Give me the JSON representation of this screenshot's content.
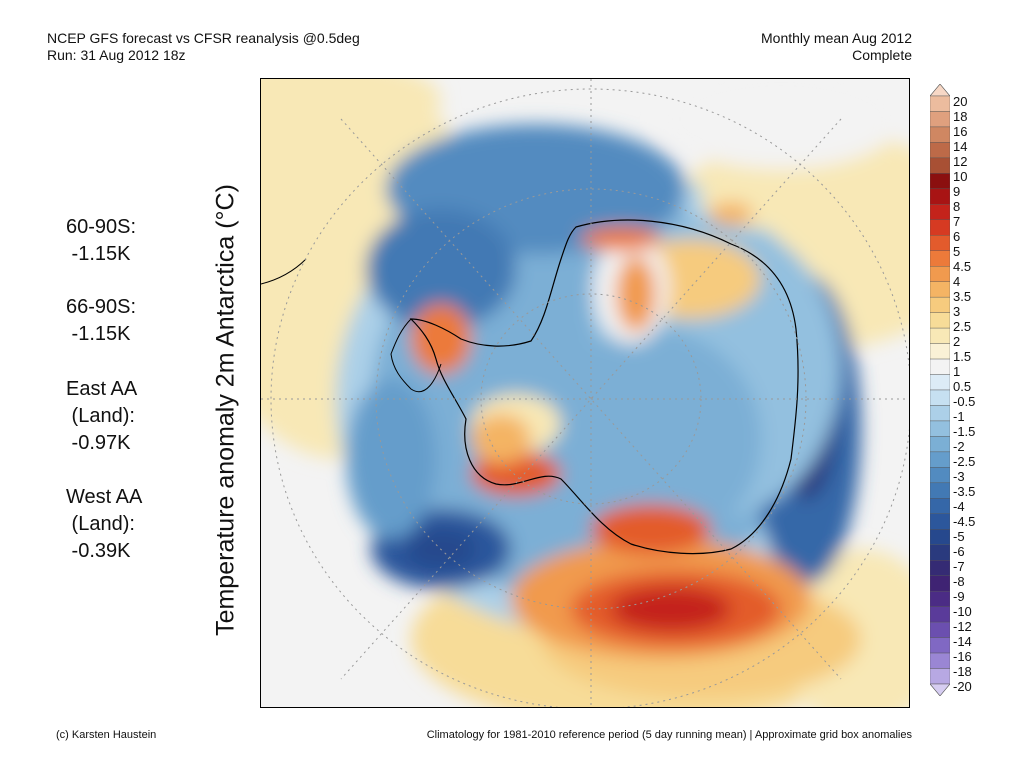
{
  "header": {
    "title_line1": "NCEP GFS forecast vs CFSR reanalysis @0.5deg",
    "title_line2": "Run: 31 Aug 2012 18z",
    "right_line1": "Monthly mean Aug 2012",
    "right_line2": "Complete"
  },
  "axis_label": "Temperature anomaly 2m Antarctica (°C)",
  "stats": [
    {
      "text": "60-90S:\n -1.15K"
    },
    {
      "text": "66-90S:\n -1.15K"
    },
    {
      "text": "East AA\n (Land):\n -0.97K"
    },
    {
      "text": "West AA\n (Land):\n -0.39K"
    }
  ],
  "footer": {
    "left": "(c) Karsten Haustein",
    "right": "Climatology for 1981-2010 reference period (5 day running mean) | Approximate grid box anomalies"
  },
  "colorbar": {
    "labels": [
      "20",
      "18",
      "16",
      "14",
      "12",
      "10",
      "9",
      "8",
      "7",
      "6",
      "5",
      "4.5",
      "4",
      "3.5",
      "3",
      "2.5",
      "2",
      "1.5",
      "1",
      "0.5",
      "-0.5",
      "-1",
      "-1.5",
      "-2",
      "-2.5",
      "-3",
      "-3.5",
      "-4",
      "-4.5",
      "-5",
      "-6",
      "-7",
      "-8",
      "-9",
      "-10",
      "-12",
      "-14",
      "-16",
      "-18",
      "-20"
    ],
    "colors": [
      "#f7d8c6",
      "#ecbc9e",
      "#dfa07e",
      "#cf8762",
      "#bd6a48",
      "#a85034",
      "#8b0f0f",
      "#a81414",
      "#c4231b",
      "#d63a22",
      "#e35b2c",
      "#ec7a3a",
      "#f19a4e",
      "#f4b464",
      "#f6cb7e",
      "#f7dc98",
      "#f8e8b6",
      "#faf1d6",
      "#f3f3f3",
      "#dcebf6",
      "#c6e0f1",
      "#acd0e8",
      "#93c0df",
      "#7bafd5",
      "#659dcb",
      "#528bc0",
      "#4279b4",
      "#3567a8",
      "#2c579c",
      "#26488d",
      "#2a3a7e",
      "#352b74",
      "#3f2373",
      "#4b2c85",
      "#5a3b9a",
      "#6b4faf",
      "#8068c3",
      "#9a86d4",
      "#b7a8e3",
      "#d6cdf1"
    ]
  },
  "map": {
    "description_colors": {
      "warm": "#e35b2c",
      "cold": "#2c579c",
      "neutral": "#f3f3f3"
    }
  }
}
